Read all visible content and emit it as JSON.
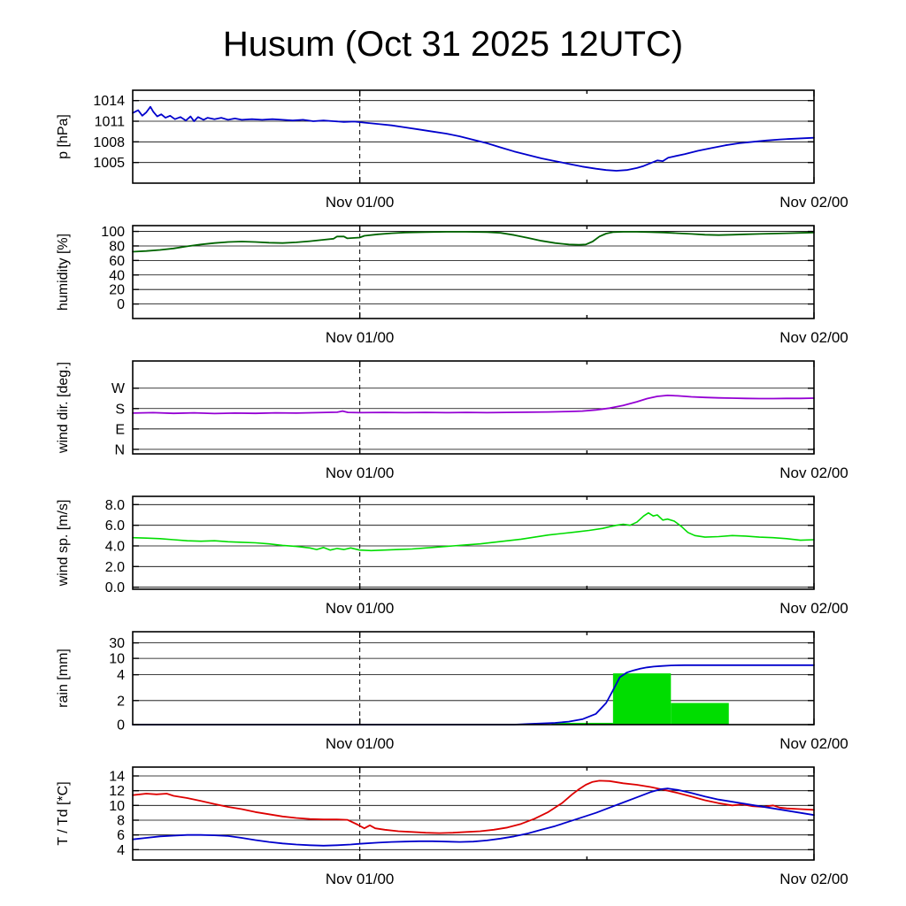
{
  "title": "Husum (Oct 31 2025 12UTC)",
  "x_axis": {
    "ticks": [
      {
        "pos": 0.3333,
        "label": "Nov 01/00",
        "major": true
      },
      {
        "pos": 0.6667,
        "label": "",
        "major": false
      },
      {
        "pos": 1.0,
        "label": "Nov 02/00",
        "major": true
      }
    ],
    "dashed_line_pos": 0.3333
  },
  "chart_data": [
    {
      "id": "pressure",
      "type": "line",
      "ylabel": "p [hPa]",
      "ylim": [
        1002,
        1015.5
      ],
      "yticks": [
        {
          "v": 1005,
          "label": "1005"
        },
        {
          "v": 1008,
          "label": "1008"
        },
        {
          "v": 1011,
          "label": "1011"
        },
        {
          "v": 1014,
          "label": "1014"
        }
      ],
      "series": [
        {
          "name": "pressure",
          "color": "#0000cc",
          "width": 1.8,
          "x": [
            0,
            0.008,
            0.014,
            0.02,
            0.026,
            0.03,
            0.036,
            0.042,
            0.048,
            0.055,
            0.062,
            0.07,
            0.078,
            0.085,
            0.09,
            0.096,
            0.104,
            0.11,
            0.12,
            0.13,
            0.14,
            0.15,
            0.16,
            0.175,
            0.19,
            0.205,
            0.22,
            0.235,
            0.25,
            0.265,
            0.28,
            0.295,
            0.31,
            0.325,
            0.34,
            0.36,
            0.38,
            0.4,
            0.42,
            0.44,
            0.46,
            0.48,
            0.5,
            0.52,
            0.54,
            0.56,
            0.58,
            0.6,
            0.62,
            0.64,
            0.66,
            0.68,
            0.695,
            0.71,
            0.725,
            0.74,
            0.75,
            0.76,
            0.77,
            0.778,
            0.786,
            0.795,
            0.81,
            0.83,
            0.85,
            0.87,
            0.89,
            0.91,
            0.93,
            0.95,
            0.97,
            1.0
          ],
          "y": [
            1012.2,
            1012.6,
            1011.8,
            1012.3,
            1013.1,
            1012.4,
            1011.7,
            1012.0,
            1011.5,
            1011.8,
            1011.3,
            1011.6,
            1011.1,
            1011.7,
            1011.0,
            1011.6,
            1011.2,
            1011.5,
            1011.3,
            1011.5,
            1011.2,
            1011.4,
            1011.2,
            1011.3,
            1011.2,
            1011.3,
            1011.2,
            1011.1,
            1011.2,
            1011.0,
            1011.1,
            1011.0,
            1010.9,
            1010.95,
            1010.8,
            1010.6,
            1010.4,
            1010.1,
            1009.8,
            1009.5,
            1009.2,
            1008.8,
            1008.3,
            1007.8,
            1007.2,
            1006.6,
            1006.1,
            1005.6,
            1005.2,
            1004.8,
            1004.4,
            1004.1,
            1003.9,
            1003.8,
            1003.9,
            1004.2,
            1004.5,
            1004.9,
            1005.3,
            1005.2,
            1005.7,
            1005.9,
            1006.2,
            1006.7,
            1007.1,
            1007.5,
            1007.8,
            1008.0,
            1008.2,
            1008.35,
            1008.45,
            1008.6
          ]
        }
      ]
    },
    {
      "id": "humidity",
      "type": "line",
      "ylabel": "humidity [%]",
      "ylim": [
        -20,
        108
      ],
      "yticks": [
        {
          "v": 0,
          "label": "0"
        },
        {
          "v": 20,
          "label": "20"
        },
        {
          "v": 40,
          "label": "40"
        },
        {
          "v": 60,
          "label": "60"
        },
        {
          "v": 80,
          "label": "80"
        },
        {
          "v": 100,
          "label": "100"
        }
      ],
      "series": [
        {
          "name": "humidity",
          "color": "#006400",
          "width": 1.8,
          "x": [
            0,
            0.02,
            0.04,
            0.06,
            0.08,
            0.1,
            0.12,
            0.14,
            0.16,
            0.18,
            0.2,
            0.22,
            0.24,
            0.26,
            0.28,
            0.295,
            0.3,
            0.31,
            0.315,
            0.325,
            0.333,
            0.34,
            0.36,
            0.38,
            0.4,
            0.43,
            0.46,
            0.49,
            0.52,
            0.54,
            0.56,
            0.58,
            0.6,
            0.62,
            0.64,
            0.655,
            0.665,
            0.675,
            0.685,
            0.695,
            0.705,
            0.72,
            0.74,
            0.76,
            0.78,
            0.8,
            0.82,
            0.84,
            0.86,
            0.88,
            0.9,
            0.92,
            0.94,
            0.96,
            0.98,
            1.0
          ],
          "y": [
            72,
            73,
            74.5,
            76.5,
            79.5,
            82,
            84,
            85.5,
            86,
            85.5,
            84.5,
            84,
            85,
            86.5,
            88.5,
            90,
            93,
            93,
            90.5,
            91,
            91.5,
            94,
            96,
            97.5,
            98.5,
            99,
            99.5,
            99.5,
            99,
            98,
            95,
            91,
            87,
            84,
            82,
            81.5,
            82,
            86,
            93,
            97,
            99,
            99.5,
            99.5,
            99,
            98.5,
            97.5,
            96.5,
            95.5,
            95,
            95.5,
            96,
            96.5,
            97,
            97.5,
            98,
            98.5
          ]
        }
      ]
    },
    {
      "id": "wind-direction",
      "type": "line",
      "ylabel": "wind dir. [deg.]",
      "ylim": [
        -20,
        390
      ],
      "yticks": [
        {
          "v": 0,
          "label": "N"
        },
        {
          "v": 90,
          "label": "E"
        },
        {
          "v": 180,
          "label": "S"
        },
        {
          "v": 270,
          "label": "W"
        }
      ],
      "series": [
        {
          "name": "wind-direction",
          "color": "#9400d3",
          "width": 1.8,
          "x": [
            0,
            0.03,
            0.06,
            0.09,
            0.12,
            0.15,
            0.18,
            0.21,
            0.24,
            0.27,
            0.3,
            0.308,
            0.316,
            0.333,
            0.37,
            0.4,
            0.43,
            0.46,
            0.49,
            0.52,
            0.55,
            0.58,
            0.61,
            0.64,
            0.66,
            0.68,
            0.7,
            0.72,
            0.74,
            0.755,
            0.77,
            0.785,
            0.8,
            0.82,
            0.84,
            0.86,
            0.88,
            0.9,
            0.92,
            0.94,
            0.96,
            0.98,
            1.0
          ],
          "y": [
            160,
            162,
            159,
            161,
            158,
            160,
            159,
            161,
            160,
            162,
            164,
            169,
            163,
            162,
            163,
            162,
            163,
            162,
            163,
            162,
            163,
            164,
            165,
            167,
            169,
            174,
            182,
            194,
            210,
            224,
            234,
            238,
            236,
            232,
            229,
            227,
            226,
            225,
            224,
            224,
            225,
            225,
            226
          ]
        }
      ]
    },
    {
      "id": "wind-speed",
      "type": "line",
      "ylabel": "wind sp. [m/s]",
      "ylim": [
        -0.2,
        8.8
      ],
      "yticks": [
        {
          "v": 0,
          "label": "0.0"
        },
        {
          "v": 2,
          "label": "2.0"
        },
        {
          "v": 4,
          "label": "4.0"
        },
        {
          "v": 6,
          "label": "6.0"
        },
        {
          "v": 8,
          "label": "8.0"
        }
      ],
      "series": [
        {
          "name": "wind-speed",
          "color": "#00dd00",
          "width": 1.6,
          "x": [
            0,
            0.02,
            0.04,
            0.06,
            0.08,
            0.1,
            0.12,
            0.14,
            0.16,
            0.18,
            0.2,
            0.22,
            0.24,
            0.26,
            0.27,
            0.28,
            0.29,
            0.3,
            0.31,
            0.32,
            0.333,
            0.35,
            0.37,
            0.39,
            0.41,
            0.43,
            0.45,
            0.47,
            0.49,
            0.51,
            0.53,
            0.55,
            0.57,
            0.59,
            0.61,
            0.63,
            0.65,
            0.67,
            0.69,
            0.7,
            0.71,
            0.72,
            0.73,
            0.74,
            0.75,
            0.757,
            0.764,
            0.77,
            0.778,
            0.785,
            0.795,
            0.805,
            0.815,
            0.825,
            0.84,
            0.86,
            0.88,
            0.9,
            0.92,
            0.94,
            0.96,
            0.98,
            1.0
          ],
          "y": [
            4.8,
            4.75,
            4.7,
            4.6,
            4.5,
            4.45,
            4.5,
            4.4,
            4.35,
            4.3,
            4.2,
            4.05,
            3.95,
            3.8,
            3.65,
            3.85,
            3.6,
            3.75,
            3.65,
            3.8,
            3.6,
            3.55,
            3.6,
            3.65,
            3.7,
            3.8,
            3.9,
            4.0,
            4.1,
            4.2,
            4.35,
            4.5,
            4.65,
            4.85,
            5.05,
            5.2,
            5.35,
            5.5,
            5.7,
            5.85,
            6.0,
            6.1,
            6.0,
            6.3,
            6.9,
            7.2,
            6.9,
            7.0,
            6.5,
            6.6,
            6.4,
            5.9,
            5.3,
            5.0,
            4.85,
            4.9,
            5.0,
            4.95,
            4.85,
            4.8,
            4.7,
            4.55,
            4.6
          ]
        }
      ]
    },
    {
      "id": "rain",
      "type": "line+bar",
      "ylabel": "rain [mm]",
      "ylim": [
        0,
        45
      ],
      "yscale": {
        "values": [
          0,
          2,
          4,
          10,
          30
        ],
        "fractions": [
          0,
          0.259,
          0.537,
          0.713,
          0.88
        ]
      },
      "yticks": [
        {
          "v": 0,
          "label": "0"
        },
        {
          "v": 2,
          "label": "2"
        },
        {
          "v": 4,
          "label": "4"
        },
        {
          "v": 10,
          "label": "10"
        },
        {
          "v": 30,
          "label": "30"
        }
      ],
      "bar_color": "#00dd00",
      "bars": [
        {
          "x0": 0.615,
          "x1": 0.705,
          "value": 0.15
        },
        {
          "x0": 0.705,
          "x1": 0.79,
          "value": 4.5
        },
        {
          "x0": 0.79,
          "x1": 0.875,
          "value": 1.8
        }
      ],
      "series": [
        {
          "name": "accumulated-rain",
          "color": "#0000cc",
          "width": 1.8,
          "x": [
            0,
            0.3,
            0.5,
            0.56,
            0.58,
            0.6,
            0.62,
            0.64,
            0.66,
            0.68,
            0.695,
            0.705,
            0.715,
            0.725,
            0.735,
            0.745,
            0.755,
            0.765,
            0.775,
            0.79,
            0.81,
            0.85,
            0.9,
            1.0
          ],
          "y": [
            0,
            0,
            0,
            0,
            0.05,
            0.1,
            0.15,
            0.25,
            0.45,
            0.9,
            1.8,
            2.8,
            3.8,
            4.8,
            5.6,
            6.2,
            6.7,
            7.0,
            7.2,
            7.4,
            7.5,
            7.5,
            7.5,
            7.5
          ]
        }
      ]
    },
    {
      "id": "temperature",
      "type": "line",
      "ylabel": "T / Td [*C]",
      "ylim": [
        2.6,
        15.2
      ],
      "yticks": [
        {
          "v": 4,
          "label": "4"
        },
        {
          "v": 6,
          "label": "6"
        },
        {
          "v": 8,
          "label": "8"
        },
        {
          "v": 10,
          "label": "10"
        },
        {
          "v": 12,
          "label": "12"
        },
        {
          "v": 14,
          "label": "14"
        }
      ],
      "series": [
        {
          "name": "temperature",
          "color": "#dd0000",
          "width": 1.8,
          "x": [
            0,
            0.02,
            0.035,
            0.05,
            0.06,
            0.08,
            0.1,
            0.12,
            0.14,
            0.16,
            0.18,
            0.2,
            0.22,
            0.24,
            0.26,
            0.28,
            0.3,
            0.315,
            0.33,
            0.34,
            0.348,
            0.356,
            0.37,
            0.39,
            0.41,
            0.43,
            0.45,
            0.47,
            0.49,
            0.51,
            0.53,
            0.55,
            0.57,
            0.59,
            0.61,
            0.63,
            0.645,
            0.655,
            0.665,
            0.675,
            0.685,
            0.7,
            0.72,
            0.74,
            0.76,
            0.78,
            0.8,
            0.82,
            0.84,
            0.86,
            0.88,
            0.895,
            0.91,
            0.925,
            0.94,
            0.95,
            0.96,
            0.98,
            1.0
          ],
          "y": [
            11.4,
            11.6,
            11.5,
            11.6,
            11.3,
            11.0,
            10.6,
            10.2,
            9.8,
            9.5,
            9.1,
            8.8,
            8.5,
            8.3,
            8.15,
            8.1,
            8.1,
            8.05,
            7.4,
            6.9,
            7.3,
            6.9,
            6.7,
            6.5,
            6.4,
            6.3,
            6.25,
            6.3,
            6.4,
            6.5,
            6.7,
            7.0,
            7.5,
            8.2,
            9.1,
            10.3,
            11.5,
            12.2,
            12.8,
            13.2,
            13.35,
            13.3,
            13.0,
            12.8,
            12.5,
            12.1,
            11.7,
            11.2,
            10.7,
            10.3,
            10.0,
            10.15,
            9.9,
            9.8,
            10.0,
            9.7,
            9.6,
            9.5,
            9.4
          ]
        },
        {
          "name": "dewpoint",
          "color": "#0000cc",
          "width": 1.8,
          "x": [
            0,
            0.02,
            0.04,
            0.06,
            0.08,
            0.1,
            0.12,
            0.14,
            0.16,
            0.18,
            0.2,
            0.22,
            0.24,
            0.26,
            0.28,
            0.3,
            0.32,
            0.333,
            0.36,
            0.38,
            0.4,
            0.42,
            0.44,
            0.46,
            0.48,
            0.5,
            0.52,
            0.54,
            0.56,
            0.58,
            0.6,
            0.62,
            0.64,
            0.66,
            0.68,
            0.7,
            0.72,
            0.74,
            0.76,
            0.775,
            0.785,
            0.8,
            0.82,
            0.84,
            0.86,
            0.88,
            0.9,
            0.92,
            0.94,
            0.96,
            0.98,
            1.0
          ],
          "y": [
            5.4,
            5.6,
            5.8,
            5.9,
            6.0,
            6.0,
            5.95,
            5.85,
            5.6,
            5.3,
            5.05,
            4.85,
            4.7,
            4.6,
            4.55,
            4.6,
            4.7,
            4.8,
            4.95,
            5.05,
            5.1,
            5.15,
            5.15,
            5.1,
            5.05,
            5.1,
            5.25,
            5.5,
            5.8,
            6.2,
            6.7,
            7.2,
            7.8,
            8.4,
            9.0,
            9.7,
            10.4,
            11.1,
            11.8,
            12.2,
            12.3,
            12.1,
            11.7,
            11.2,
            10.8,
            10.5,
            10.2,
            9.9,
            9.6,
            9.3,
            9.0,
            8.7
          ]
        }
      ]
    }
  ]
}
